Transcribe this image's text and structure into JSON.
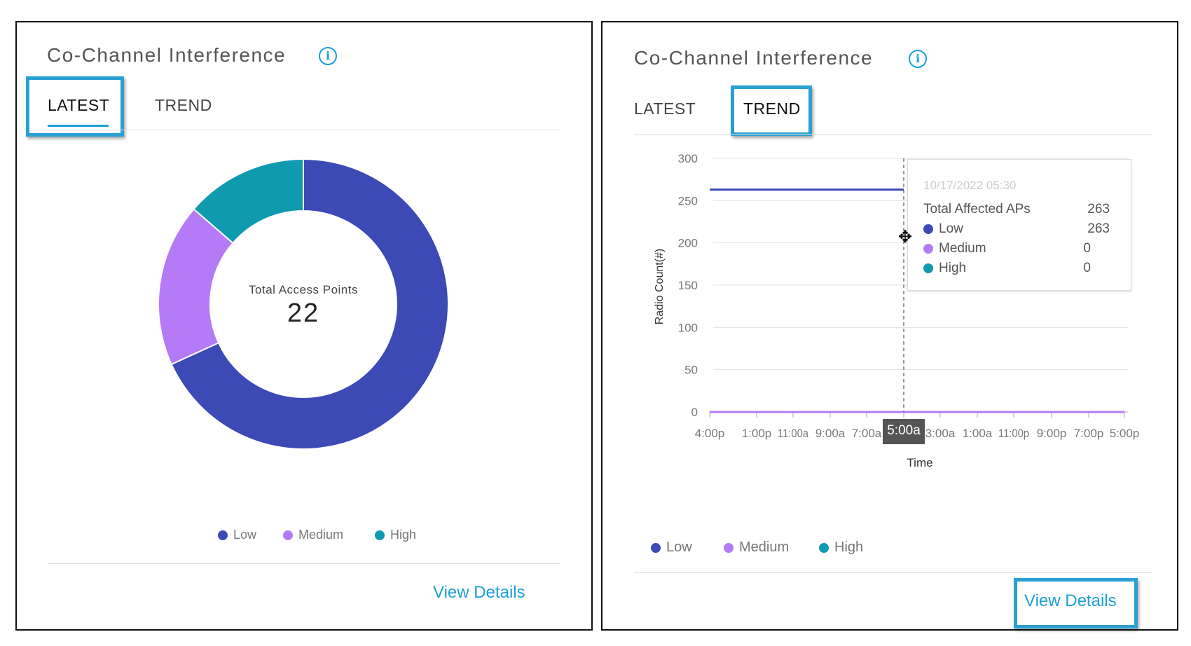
{
  "colors": {
    "low": "#3b4ab5",
    "medium": "#b57bf7",
    "high": "#0f9aaf",
    "accent": "#1ba0d7",
    "highlight": "#2aa0d2"
  },
  "left": {
    "title": "Co-Channel Interference",
    "tabs": [
      "LATEST",
      "TREND"
    ],
    "active_tab": "LATEST",
    "center_label": "Total Access Points",
    "center_value": "22",
    "legend": [
      "Low",
      "Medium",
      "High"
    ],
    "view_details": "View Details"
  },
  "right": {
    "title": "Co-Channel Interference",
    "tabs": [
      "LATEST",
      "TREND"
    ],
    "active_tab": "TREND",
    "legend": [
      "Low",
      "Medium",
      "High"
    ],
    "view_details": "View Details",
    "tooltip": {
      "date": "10/17/2022 05:30",
      "total_label": "Total Affected APs",
      "total_value": "263",
      "rows": [
        {
          "label": "Low",
          "value": "263"
        },
        {
          "label": "Medium",
          "value": "0"
        },
        {
          "label": "High",
          "value": "0"
        }
      ]
    },
    "hover_x_label": "5:00a"
  },
  "chart_data": [
    {
      "type": "pie",
      "donut": true,
      "categories": [
        "Low",
        "Medium",
        "High"
      ],
      "values": [
        15,
        4,
        3
      ],
      "total": 22
    },
    {
      "type": "line",
      "xlabel": "Time",
      "ylabel": "Radio Count(#)",
      "ylim": [
        0,
        300
      ],
      "yticks": [
        0,
        50,
        100,
        150,
        200,
        250,
        300
      ],
      "grid": true,
      "x": [
        "4:00p",
        "1:00p",
        "11:00a",
        "9:00a",
        "7:00a",
        "5:00a",
        "3:00a",
        "1:00a",
        "11:00p",
        "9:00p",
        "7:00p",
        "5:00p"
      ],
      "series": [
        {
          "name": "Low",
          "values": [
            263,
            263,
            263,
            263,
            263,
            263,
            0,
            0,
            0,
            0,
            0,
            0
          ]
        },
        {
          "name": "Medium",
          "values": [
            0,
            0,
            0,
            0,
            0,
            0,
            0,
            0,
            0,
            0,
            0,
            0
          ]
        },
        {
          "name": "High",
          "values": [
            0,
            0,
            0,
            0,
            0,
            0,
            0,
            0,
            0,
            0,
            0,
            0
          ]
        }
      ]
    }
  ]
}
